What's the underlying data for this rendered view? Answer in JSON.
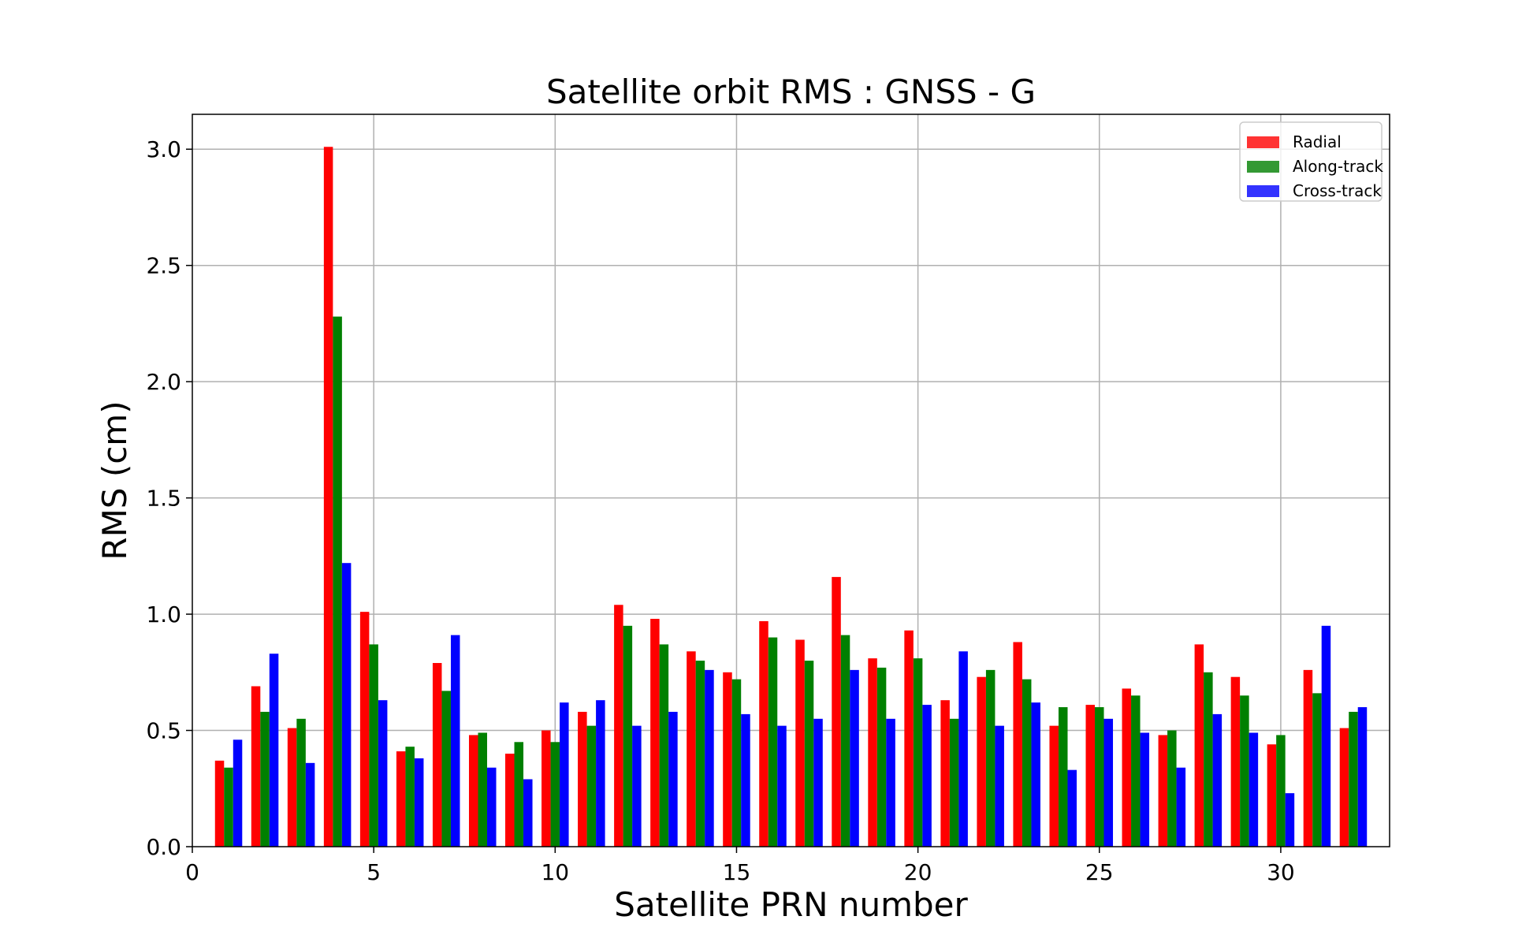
{
  "chart_data": {
    "type": "bar",
    "title": "Satellite orbit RMS : GNSS - G",
    "xlabel": "Satellite PRN number",
    "ylabel": "RMS (cm)",
    "xlim": [
      0,
      33
    ],
    "ylim": [
      0,
      3.15
    ],
    "xticks": [
      0,
      5,
      10,
      15,
      20,
      25,
      30
    ],
    "xtick_labels": [
      "0",
      "5",
      "10",
      "15",
      "20",
      "25",
      "30"
    ],
    "yticks": [
      0,
      0.5,
      1.0,
      1.5,
      2.0,
      2.5,
      3.0
    ],
    "ytick_labels": [
      "0.0",
      "0.5",
      "1.0",
      "1.5",
      "2.0",
      "2.5",
      "3.0"
    ],
    "grid": true,
    "legend_position": "top-right",
    "x": [
      1,
      2,
      3,
      4,
      5,
      6,
      7,
      8,
      9,
      10,
      11,
      12,
      13,
      14,
      15,
      16,
      17,
      18,
      19,
      20,
      21,
      22,
      23,
      24,
      25,
      26,
      27,
      28,
      29,
      30,
      31,
      32
    ],
    "series": [
      {
        "name": "Radial",
        "color": "#ff0000",
        "values": [
          0.37,
          0.69,
          0.51,
          3.01,
          1.01,
          0.41,
          0.79,
          0.48,
          0.4,
          0.5,
          0.58,
          1.04,
          0.98,
          0.84,
          0.75,
          0.97,
          0.89,
          1.16,
          0.81,
          0.93,
          0.63,
          0.73,
          0.88,
          0.52,
          0.61,
          0.68,
          0.48,
          0.87,
          0.73,
          0.44,
          0.76,
          0.51
        ]
      },
      {
        "name": "Along-track",
        "color": "#008000",
        "values": [
          0.34,
          0.58,
          0.55,
          2.28,
          0.87,
          0.43,
          0.67,
          0.49,
          0.45,
          0.45,
          0.52,
          0.95,
          0.87,
          0.8,
          0.72,
          0.9,
          0.8,
          0.91,
          0.77,
          0.81,
          0.55,
          0.76,
          0.72,
          0.6,
          0.6,
          0.65,
          0.5,
          0.75,
          0.65,
          0.48,
          0.66,
          0.58
        ]
      },
      {
        "name": "Cross-track",
        "color": "#0000ff",
        "values": [
          0.46,
          0.83,
          0.36,
          1.22,
          0.63,
          0.38,
          0.91,
          0.34,
          0.29,
          0.62,
          0.63,
          0.52,
          0.58,
          0.76,
          0.57,
          0.52,
          0.55,
          0.76,
          0.55,
          0.61,
          0.84,
          0.52,
          0.62,
          0.33,
          0.55,
          0.49,
          0.34,
          0.57,
          0.49,
          0.23,
          0.95,
          0.6
        ]
      }
    ]
  }
}
